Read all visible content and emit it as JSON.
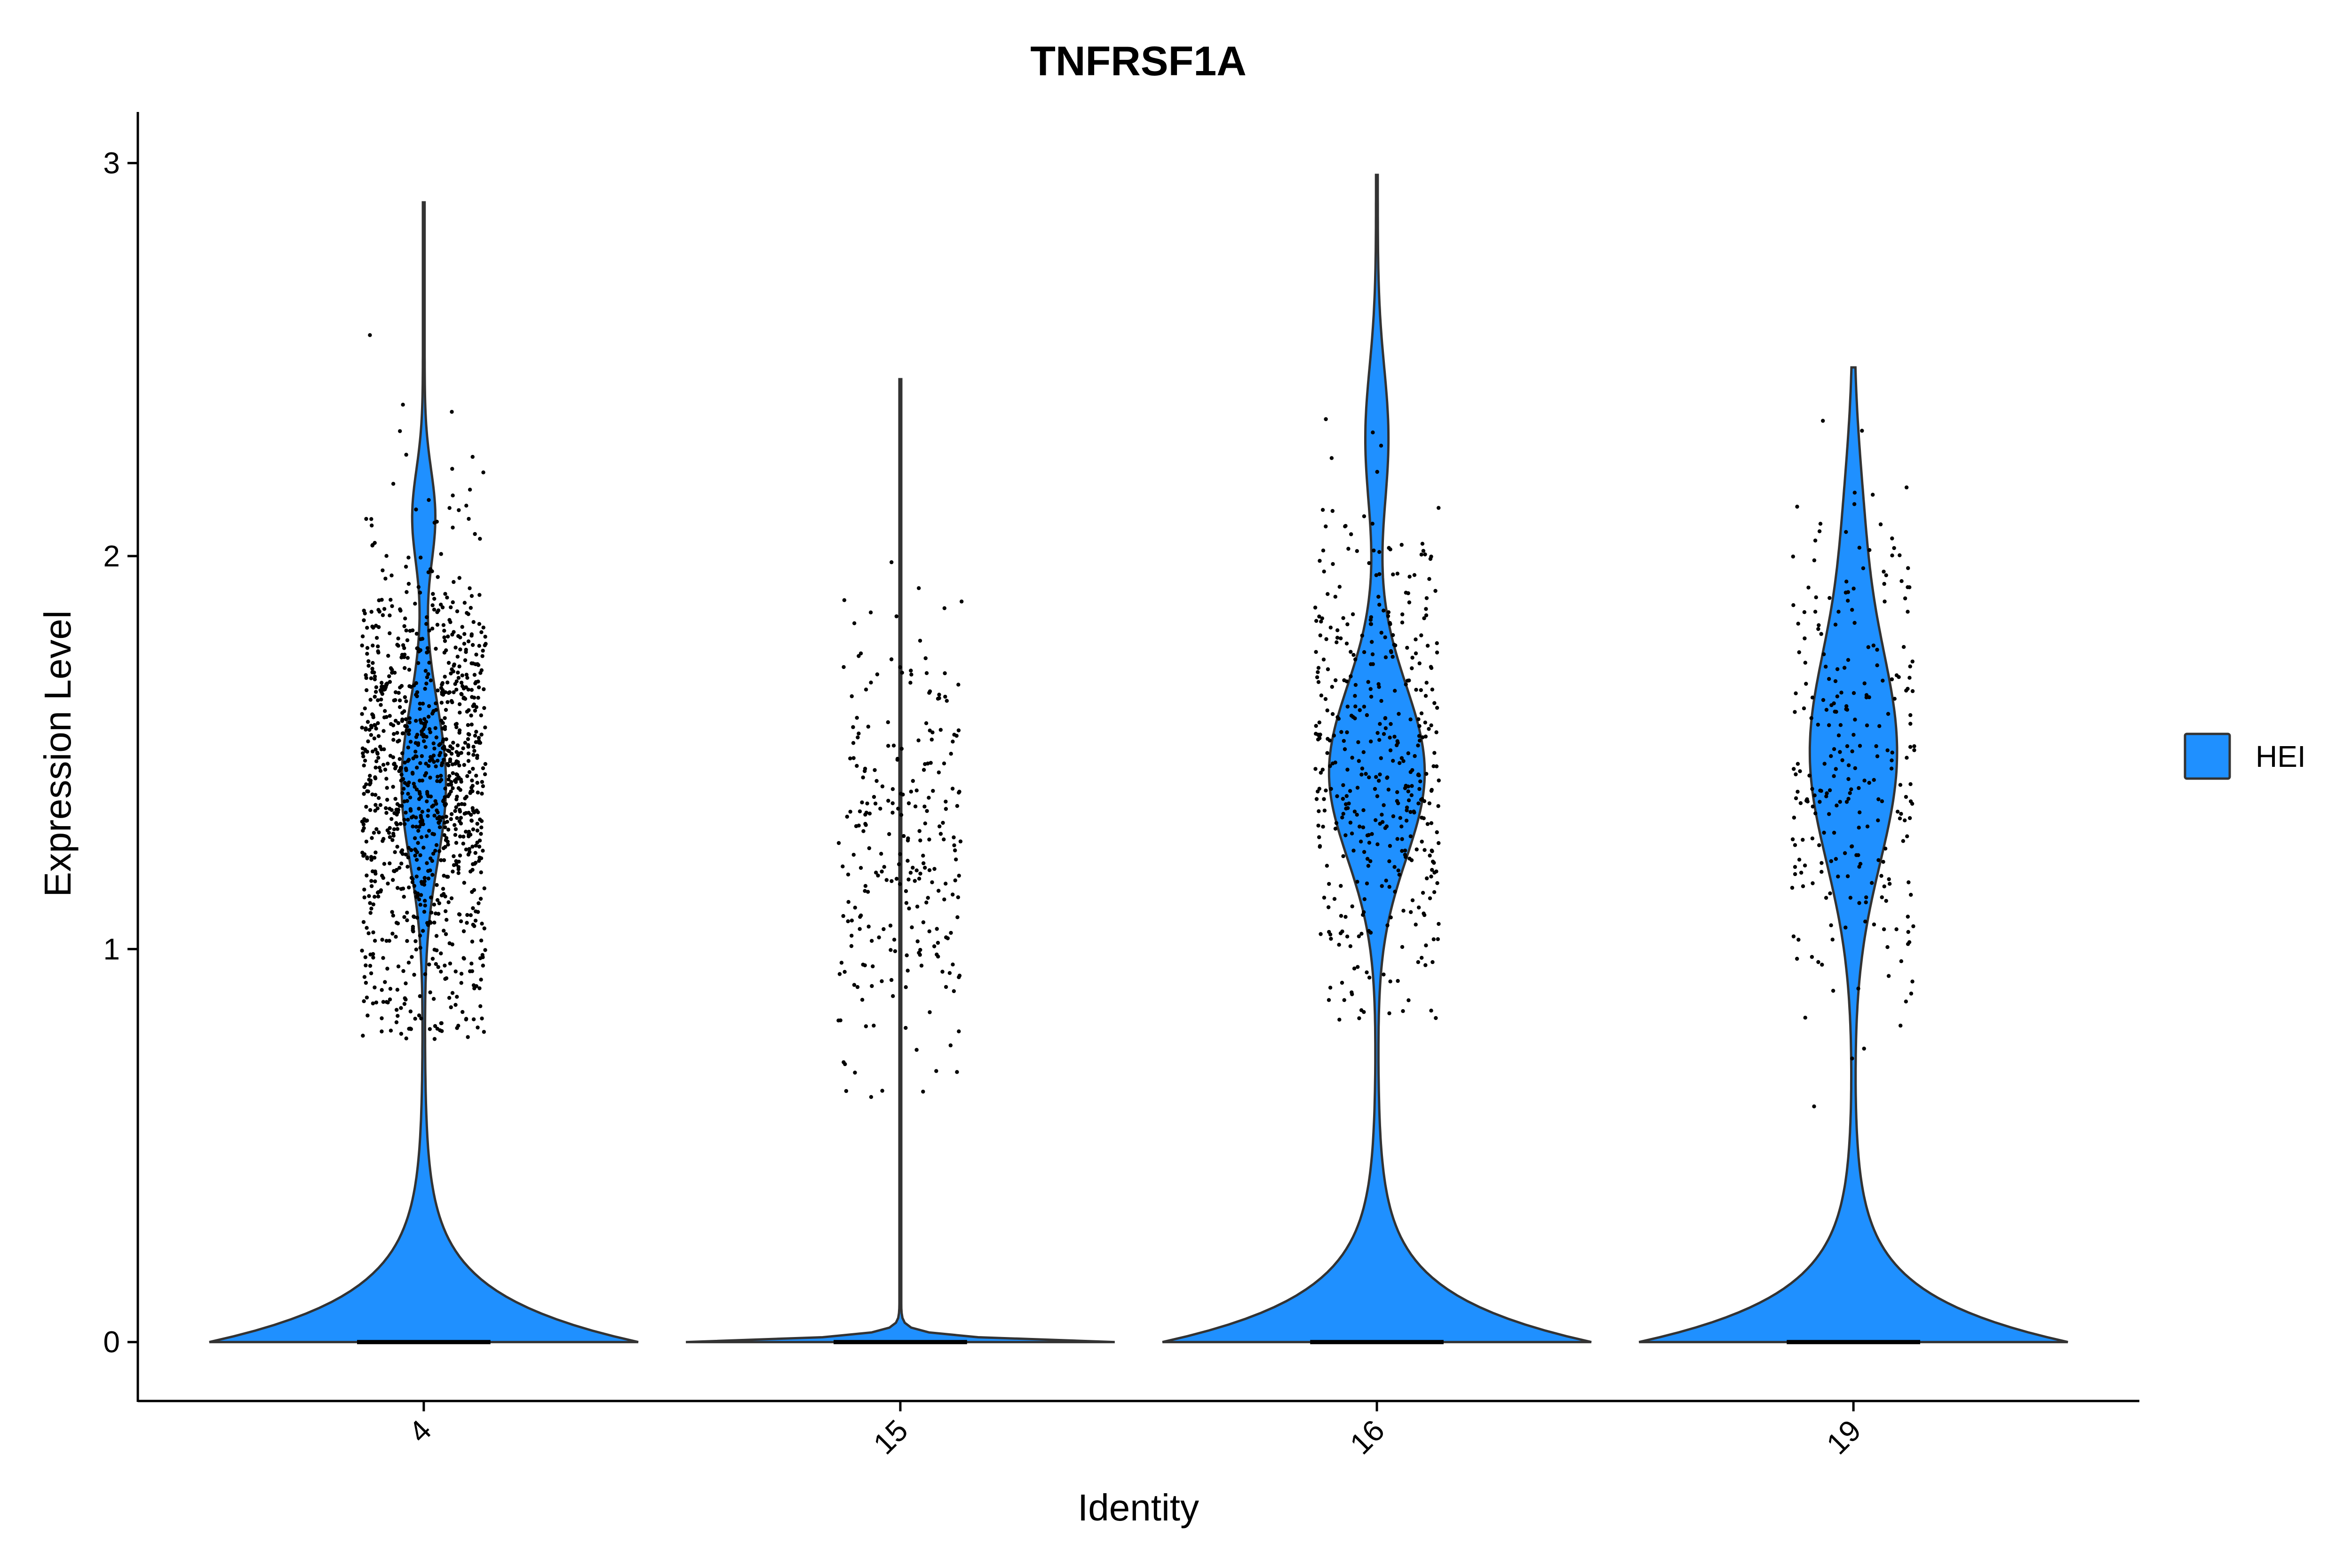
{
  "chart_data": {
    "type": "violin",
    "title": "TNFRSF1A",
    "xlabel": "Identity",
    "ylabel": "Expression Level",
    "categories": [
      "4",
      "15",
      "16",
      "19"
    ],
    "ylim": [
      -0.15,
      3.13
    ],
    "yticks": [
      "0",
      "1",
      "2",
      "3"
    ],
    "legend": {
      "position": "right",
      "entries": [
        {
          "label": "HEI",
          "color": "#1f90ff"
        }
      ]
    },
    "grid": false,
    "colors": {
      "fill": "#1f90ff",
      "outline": "#333333",
      "points": "#000000"
    },
    "series": [
      {
        "category": "4",
        "max": 2.9,
        "zero_fraction": "large",
        "approx_n_nonzero_points": 1100,
        "nonzero_center": 1.42,
        "nonzero_range": [
          0.77,
          2.91
        ]
      },
      {
        "category": "15",
        "max": 2.45,
        "zero_fraction": "very large",
        "approx_n_nonzero_points": 250,
        "nonzero_center": 1.25,
        "nonzero_range": [
          0.62,
          2.45
        ]
      },
      {
        "category": "16",
        "max": 2.97,
        "zero_fraction": "large",
        "approx_n_nonzero_points": 430,
        "nonzero_center": 1.48,
        "nonzero_range": [
          0.82,
          2.97
        ]
      },
      {
        "category": "19",
        "max": 2.48,
        "zero_fraction": "large",
        "approx_n_nonzero_points": 260,
        "nonzero_center": 1.45,
        "nonzero_range": [
          0.51,
          2.48
        ]
      }
    ]
  }
}
